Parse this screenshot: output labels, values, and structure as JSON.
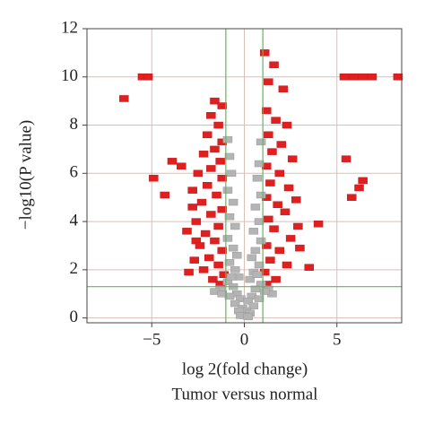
{
  "chart_data": {
    "type": "scatter",
    "y_label": "−log10(P value)",
    "x_label": "log 2(fold change)",
    "x_label_2": "Tumor versus normal",
    "xlim": [
      -8.5,
      8.5
    ],
    "ylim": [
      -0.2,
      12
    ],
    "xticks": [
      {
        "value": -5,
        "label": "−5"
      },
      0,
      5
    ],
    "yticks": [
      0,
      2,
      4,
      6,
      8,
      10,
      12
    ],
    "grid": true,
    "grid_color": "#d9bfb6",
    "threshold_color": "#5cb85c",
    "vlines": [
      -1,
      1
    ],
    "hline": 1.3,
    "series": [
      {
        "color": "#e02020",
        "x": [
          -6.5,
          -5.5,
          -5.2,
          -3.9,
          -3.4,
          -4.9,
          -4.3,
          -3.0,
          -2.6,
          -1.6,
          -1.2,
          -1.8,
          -1.4,
          -2.0,
          -1.2,
          -1.6,
          -2.2,
          -1.3,
          -1.8,
          -2.5,
          -1.2,
          -2.0,
          -2.8,
          -1.5,
          -2.3,
          -1.2,
          -1.8,
          -2.6,
          -1.4,
          -2.1,
          -1.6,
          -2.4,
          -1.2,
          -1.9,
          -1.4,
          -2.2,
          -1.1,
          -1.7,
          -1.3,
          -2.8,
          -3.1,
          -2.7,
          1.1,
          1.6,
          2.1,
          1.3,
          5.4,
          5.9,
          6.4,
          6.9,
          8.3,
          5.5,
          6.4,
          6.2,
          5.8,
          4.0,
          3.5,
          2.9,
          1.2,
          1.7,
          2.3,
          1.3,
          2.0,
          1.5,
          2.6,
          1.2,
          1.9,
          1.4,
          2.4,
          1.2,
          1.8,
          2.2,
          1.3,
          1.6,
          2.5,
          1.2,
          1.9,
          1.4,
          2.3,
          1.1,
          1.7,
          1.2,
          2.8,
          3.0
        ],
        "values": [
          9.1,
          10.0,
          10.0,
          6.5,
          6.3,
          5.8,
          5.1,
          1.9,
          3.2,
          9.0,
          8.8,
          8.4,
          8.0,
          7.6,
          7.3,
          7.0,
          6.8,
          6.5,
          6.2,
          6.0,
          5.8,
          5.5,
          5.3,
          5.1,
          4.8,
          4.5,
          4.3,
          4.0,
          3.8,
          3.5,
          3.2,
          3.0,
          2.8,
          2.5,
          2.2,
          2.0,
          1.8,
          1.6,
          1.4,
          4.6,
          3.6,
          2.4,
          11.0,
          10.5,
          9.5,
          9.8,
          10.0,
          10.0,
          10.0,
          10.0,
          10.0,
          6.6,
          5.7,
          5.4,
          5.0,
          3.9,
          2.1,
          3.8,
          8.6,
          8.2,
          8.0,
          7.6,
          7.2,
          6.9,
          6.6,
          6.3,
          6.0,
          5.6,
          5.4,
          5.0,
          4.7,
          4.4,
          4.1,
          3.7,
          3.3,
          3.0,
          2.8,
          2.4,
          2.2,
          1.9,
          1.6,
          1.4,
          4.9,
          2.9
        ]
      },
      {
        "color": "#b4b4b4",
        "x": [
          -0.9,
          0.9,
          -0.8,
          0.8,
          -0.7,
          0.7,
          -0.9,
          0.9,
          -0.6,
          0.6,
          -0.8,
          0.8,
          -0.5,
          0.5,
          -0.9,
          0.9,
          -0.6,
          0.6,
          -0.4,
          0.4,
          -0.8,
          0.8,
          -1.3,
          1.3,
          -0.5,
          0.5,
          -0.3,
          0.3,
          -0.9,
          0.9,
          -0.6,
          0.6,
          -1.6,
          1.5,
          -0.4,
          0.4,
          -0.2,
          0.2,
          -0.8,
          0.8,
          -0.5,
          0.5,
          -0.1,
          0.1,
          -0.3,
          0.3,
          0.0,
          -0.2,
          0.2,
          -1.2,
          1.1,
          -0.7,
          0.7
        ],
        "values": [
          7.4,
          7.3,
          6.7,
          6.4,
          6.0,
          5.8,
          5.3,
          5.1,
          4.8,
          4.6,
          4.2,
          4.0,
          3.8,
          3.6,
          3.3,
          3.2,
          2.9,
          2.8,
          2.6,
          2.5,
          2.3,
          2.2,
          1.2,
          1.2,
          2.0,
          1.9,
          1.7,
          1.6,
          1.5,
          1.4,
          1.3,
          1.2,
          1.1,
          1.0,
          1.0,
          0.9,
          0.8,
          0.7,
          0.9,
          0.8,
          0.6,
          0.5,
          0.4,
          0.3,
          0.3,
          0.2,
          0.1,
          0.1,
          0.05,
          1.0,
          1.1,
          1.7,
          1.8
        ]
      }
    ]
  }
}
